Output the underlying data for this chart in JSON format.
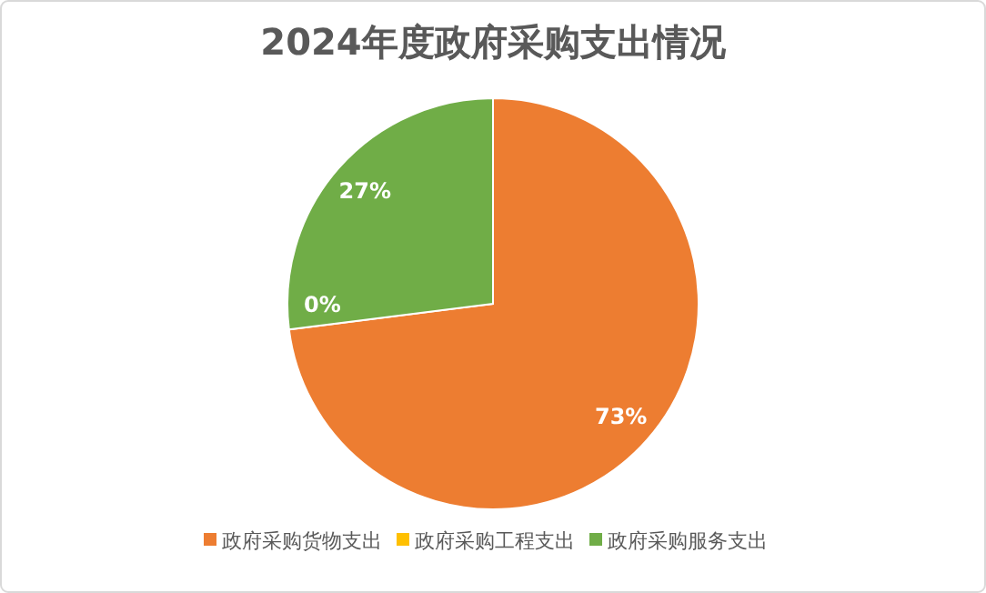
{
  "chart_data": {
    "type": "pie",
    "title": "2024年度政府采购支出情况",
    "categories": [
      "政府采购货物支出",
      "政府采购工程支出",
      "政府采购服务支出"
    ],
    "values": [
      73,
      0,
      27
    ],
    "colors": [
      "#ed7d31",
      "#ffc000",
      "#70ad47"
    ],
    "value_labels": [
      "73%",
      "0%",
      "27%"
    ],
    "legend": "bottom"
  }
}
